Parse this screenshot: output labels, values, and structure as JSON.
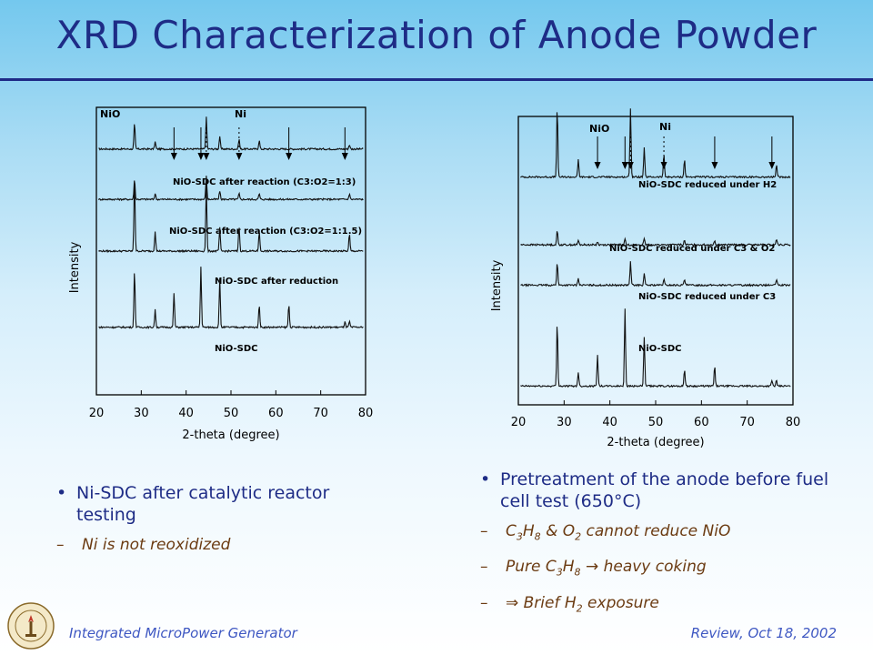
{
  "title": "XRD Characterization of Anode Powder",
  "footer": {
    "left": "Integrated MicroPower Generator",
    "right": "Review, Oct 18, 2002"
  },
  "seal_text": "CALIFORNIA INSTITUTE OF TECHNOLOGY",
  "left_bullets": {
    "main": "Ni-SDC after catalytic reactor testing",
    "sub1": "Ni is not reoxidized"
  },
  "right_bullets": {
    "main": "Pretreatment of the anode before fuel cell test (650°C)",
    "sub1_a": "C",
    "sub1_b": "3",
    "sub1_c": "H",
    "sub1_d": "8",
    "sub1_e": " & O",
    "sub1_f": "2",
    "sub1_g": " cannot reduce NiO",
    "sub2_a": "Pure C",
    "sub2_b": "3",
    "sub2_c": "H",
    "sub2_d": "8",
    "sub2_e": " → heavy coking",
    "sub3_a": "⇒ Brief H",
    "sub3_b": "2",
    "sub3_c": " exposure"
  },
  "chart_data": [
    {
      "type": "line",
      "xlabel": "2-theta (degree)",
      "ylabel": "Intensity",
      "xlim": [
        20,
        80
      ],
      "xticks": [
        20,
        30,
        40,
        50,
        60,
        70,
        80
      ],
      "phase_labels": [
        "NiO",
        "Ni"
      ],
      "nio_markers": [
        37.3,
        43.3,
        62.9,
        75.4
      ],
      "ni_markers": [
        44.5,
        51.8
      ],
      "series": [
        {
          "name": "NiO-SDC after reaction (C3:O2=1:3)",
          "baseline": 0.855,
          "peaks": [
            [
              28.5,
              0.09
            ],
            [
              33.1,
              0.025
            ],
            [
              44.5,
              0.11
            ],
            [
              47.5,
              0.045
            ],
            [
              51.8,
              0.035
            ],
            [
              56.3,
              0.03
            ],
            [
              76.4,
              0.015
            ]
          ]
        },
        {
          "name": "NiO-SDC after reaction (C3:O2=1:1.5)",
          "baseline": 0.68,
          "peaks": [
            [
              28.5,
              0.07
            ],
            [
              33.1,
              0.02
            ],
            [
              44.5,
              0.08
            ],
            [
              47.5,
              0.03
            ],
            [
              51.8,
              0.02
            ],
            [
              56.3,
              0.02
            ],
            [
              76.4,
              0.02
            ]
          ]
        },
        {
          "name": "NiO-SDC after reduction",
          "baseline": 0.5,
          "peaks": [
            [
              28.5,
              0.25
            ],
            [
              33.1,
              0.07
            ],
            [
              44.5,
              0.23
            ],
            [
              47.5,
              0.08
            ],
            [
              51.8,
              0.09
            ],
            [
              56.3,
              0.07
            ],
            [
              76.4,
              0.06
            ]
          ]
        },
        {
          "name": "NiO-SDC",
          "baseline": 0.235,
          "peaks": [
            [
              28.5,
              0.2
            ],
            [
              33.1,
              0.06
            ],
            [
              37.3,
              0.12
            ],
            [
              43.3,
              0.21
            ],
            [
              47.5,
              0.17
            ],
            [
              56.3,
              0.08
            ],
            [
              62.9,
              0.08
            ],
            [
              75.4,
              0.02
            ],
            [
              76.4,
              0.02
            ]
          ]
        }
      ]
    },
    {
      "type": "line",
      "xlabel": "2-theta (degree)",
      "ylabel": "Intensity",
      "xlim": [
        20,
        80
      ],
      "xticks": [
        20,
        30,
        40,
        50,
        60,
        70,
        80
      ],
      "phase_labels": [
        "NiO",
        "Ni"
      ],
      "nio_markers": [
        37.3,
        43.3,
        62.9,
        75.4
      ],
      "ni_markers": [
        44.5,
        51.8
      ],
      "series": [
        {
          "name": "NiO-SDC reduced under H2",
          "baseline": 0.79,
          "peaks": [
            [
              28.5,
              0.24
            ],
            [
              33.1,
              0.06
            ],
            [
              44.5,
              0.24
            ],
            [
              47.5,
              0.1
            ],
            [
              51.8,
              0.08
            ],
            [
              56.3,
              0.06
            ],
            [
              76.4,
              0.04
            ]
          ]
        },
        {
          "name": "NiO-SDC reduced under C3 & O2",
          "baseline": 0.555,
          "peaks": [
            [
              28.5,
              0.05
            ],
            [
              33.1,
              0.015
            ],
            [
              37.3,
              0.01
            ],
            [
              43.3,
              0.02
            ],
            [
              47.5,
              0.02
            ],
            [
              56.3,
              0.015
            ],
            [
              62.9,
              0.015
            ],
            [
              76.4,
              0.02
            ]
          ]
        },
        {
          "name": "NiO-SDC reduced under C3",
          "baseline": 0.415,
          "peaks": [
            [
              28.5,
              0.08
            ],
            [
              33.1,
              0.025
            ],
            [
              44.5,
              0.08
            ],
            [
              47.5,
              0.04
            ],
            [
              51.8,
              0.02
            ],
            [
              56.3,
              0.02
            ],
            [
              76.4,
              0.02
            ]
          ]
        },
        {
          "name": "NiO-SDC",
          "baseline": 0.065,
          "peaks": [
            [
              28.5,
              0.22
            ],
            [
              33.1,
              0.05
            ],
            [
              37.3,
              0.11
            ],
            [
              43.3,
              0.27
            ],
            [
              47.5,
              0.17
            ],
            [
              56.3,
              0.06
            ],
            [
              62.9,
              0.07
            ],
            [
              75.4,
              0.02
            ],
            [
              76.4,
              0.02
            ]
          ]
        }
      ]
    }
  ]
}
